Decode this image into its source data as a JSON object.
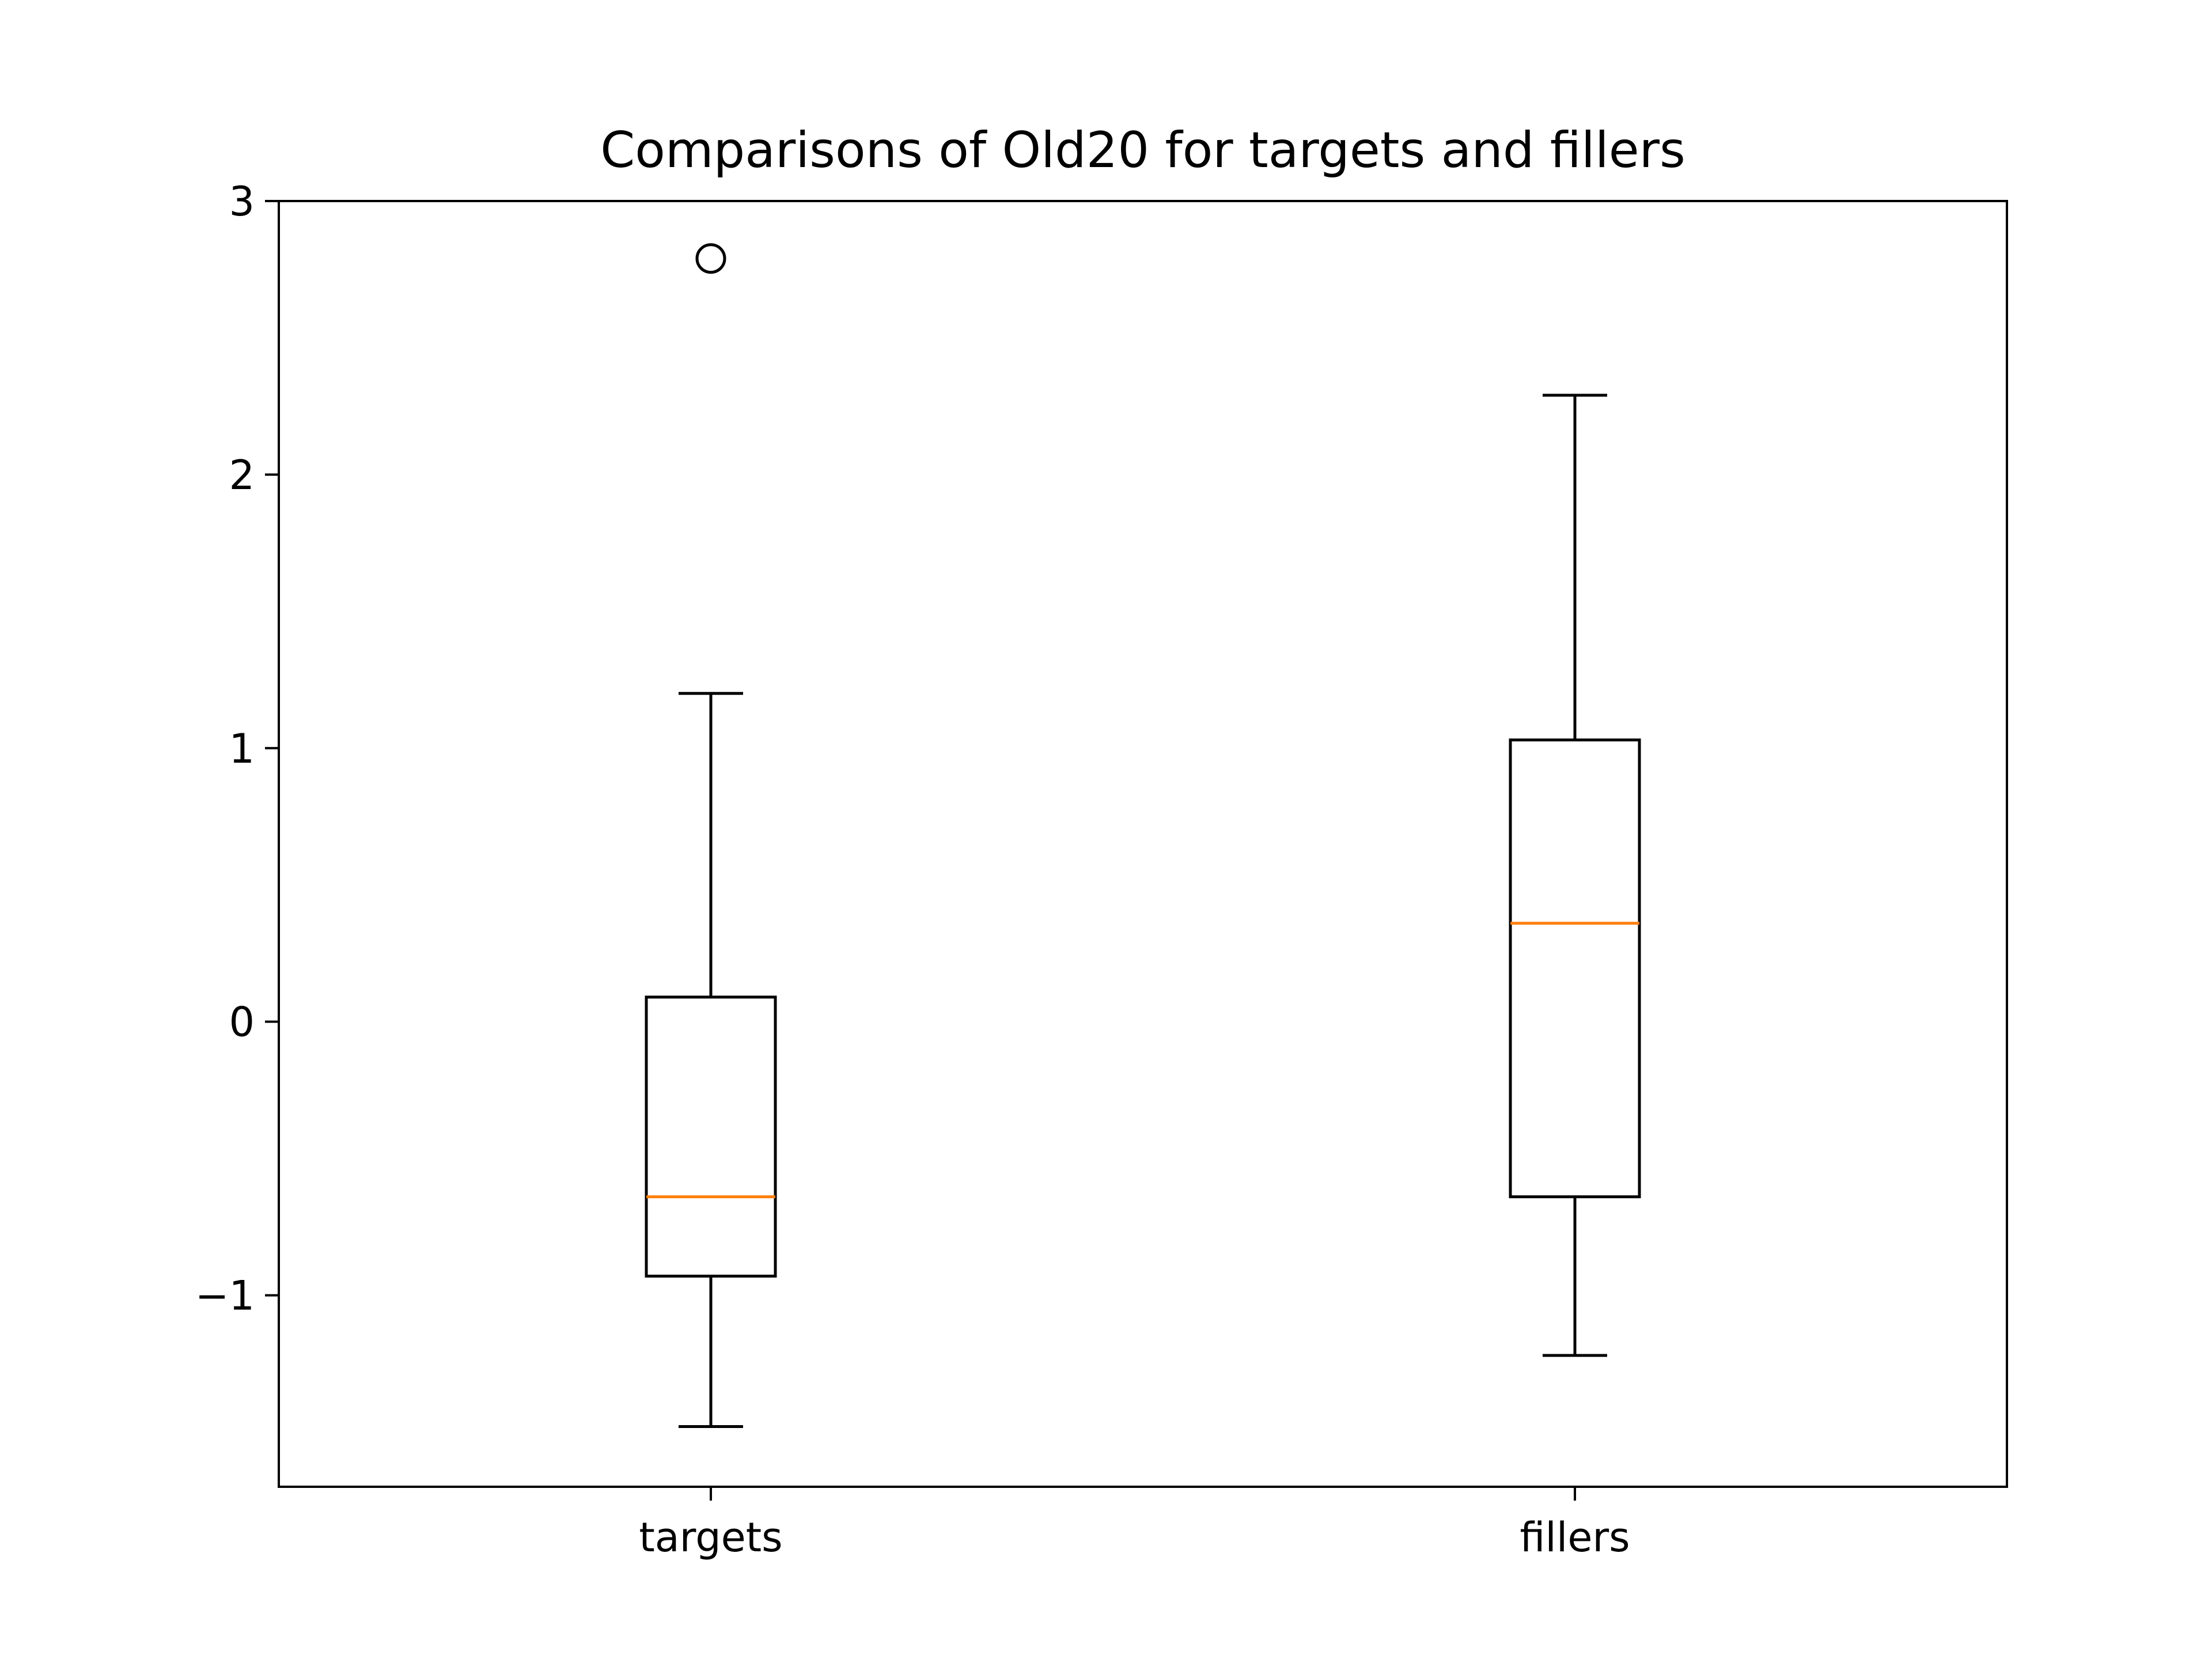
{
  "chart_data": {
    "type": "boxplot",
    "title": "Comparisons of Old20 for targets and fillers",
    "xlabel": "",
    "ylabel": "",
    "categories": [
      "targets",
      "fillers"
    ],
    "ylim": [
      -1.7,
      3.0
    ],
    "yticks": [
      -1,
      0,
      1,
      2,
      3
    ],
    "ytick_labels": [
      "−1",
      "0",
      "1",
      "2",
      "3"
    ],
    "grid": false,
    "boxes": [
      {
        "label": "targets",
        "whisker_low": -1.48,
        "q1": -0.93,
        "median": -0.64,
        "q3": 0.09,
        "whisker_high": 1.2,
        "outliers": [
          2.79
        ]
      },
      {
        "label": "fillers",
        "whisker_low": -1.22,
        "q1": -0.64,
        "median": 0.36,
        "q3": 1.03,
        "whisker_high": 2.29,
        "outliers": []
      }
    ],
    "colors": {
      "box": "#000000",
      "median": "#ff7f0e",
      "axes": "#000000"
    }
  }
}
